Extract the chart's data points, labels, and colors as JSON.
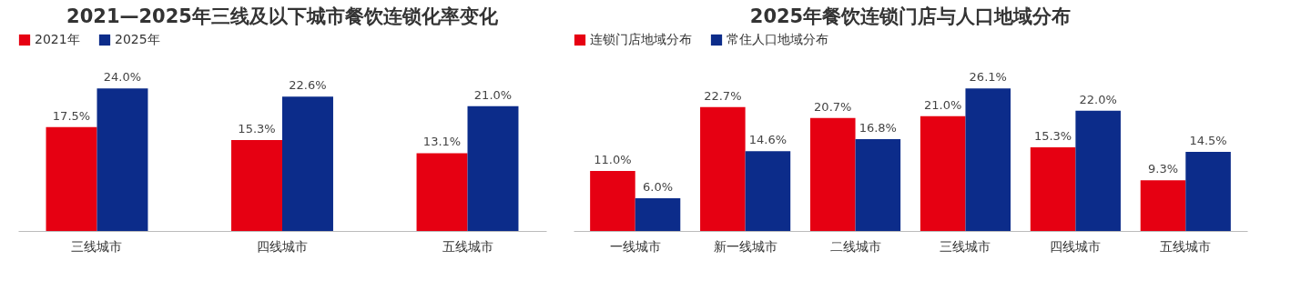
{
  "chart_data": [
    {
      "type": "bar",
      "title": "2021—2025年三线及以下城市餐饮连锁化率变化",
      "categories": [
        "三线城市",
        "四线城市",
        "五线城市"
      ],
      "legend": "top",
      "tick_labels": "x",
      "series": [
        {
          "name": "2021年",
          "color": "#e60012",
          "values": [
            17.5,
            15.3,
            13.1
          ],
          "value_labels": [
            "17.5%",
            "15.3%",
            "13.1%"
          ]
        },
        {
          "name": "2025年",
          "color": "#0c2c8a",
          "values": [
            24.0,
            22.6,
            21.0
          ],
          "value_labels": [
            "24.0%",
            "22.6%",
            "21.0%"
          ]
        }
      ]
    },
    {
      "type": "bar",
      "title": "2025年餐饮连锁门店与人口地域分布",
      "categories": [
        "一线城市",
        "新一线城市",
        "二线城市",
        "三线城市",
        "四线城市",
        "五线城市"
      ],
      "legend": "top",
      "tick_labels": "x",
      "series": [
        {
          "name": "连锁门店地域分布",
          "color": "#e60012",
          "values": [
            11.0,
            22.7,
            20.7,
            21.0,
            15.3,
            9.3
          ],
          "value_labels": [
            "11.0%",
            "22.7%",
            "20.7%",
            "21.0%",
            "15.3%",
            "9.3%"
          ]
        },
        {
          "name": "常住人口地域分布",
          "color": "#0c2c8a",
          "values": [
            6.0,
            14.6,
            16.8,
            26.1,
            22.0,
            14.5
          ],
          "value_labels": [
            "6.0%",
            "14.6%",
            "16.8%",
            "26.1%",
            "22.0%",
            "14.5%"
          ]
        }
      ]
    }
  ]
}
